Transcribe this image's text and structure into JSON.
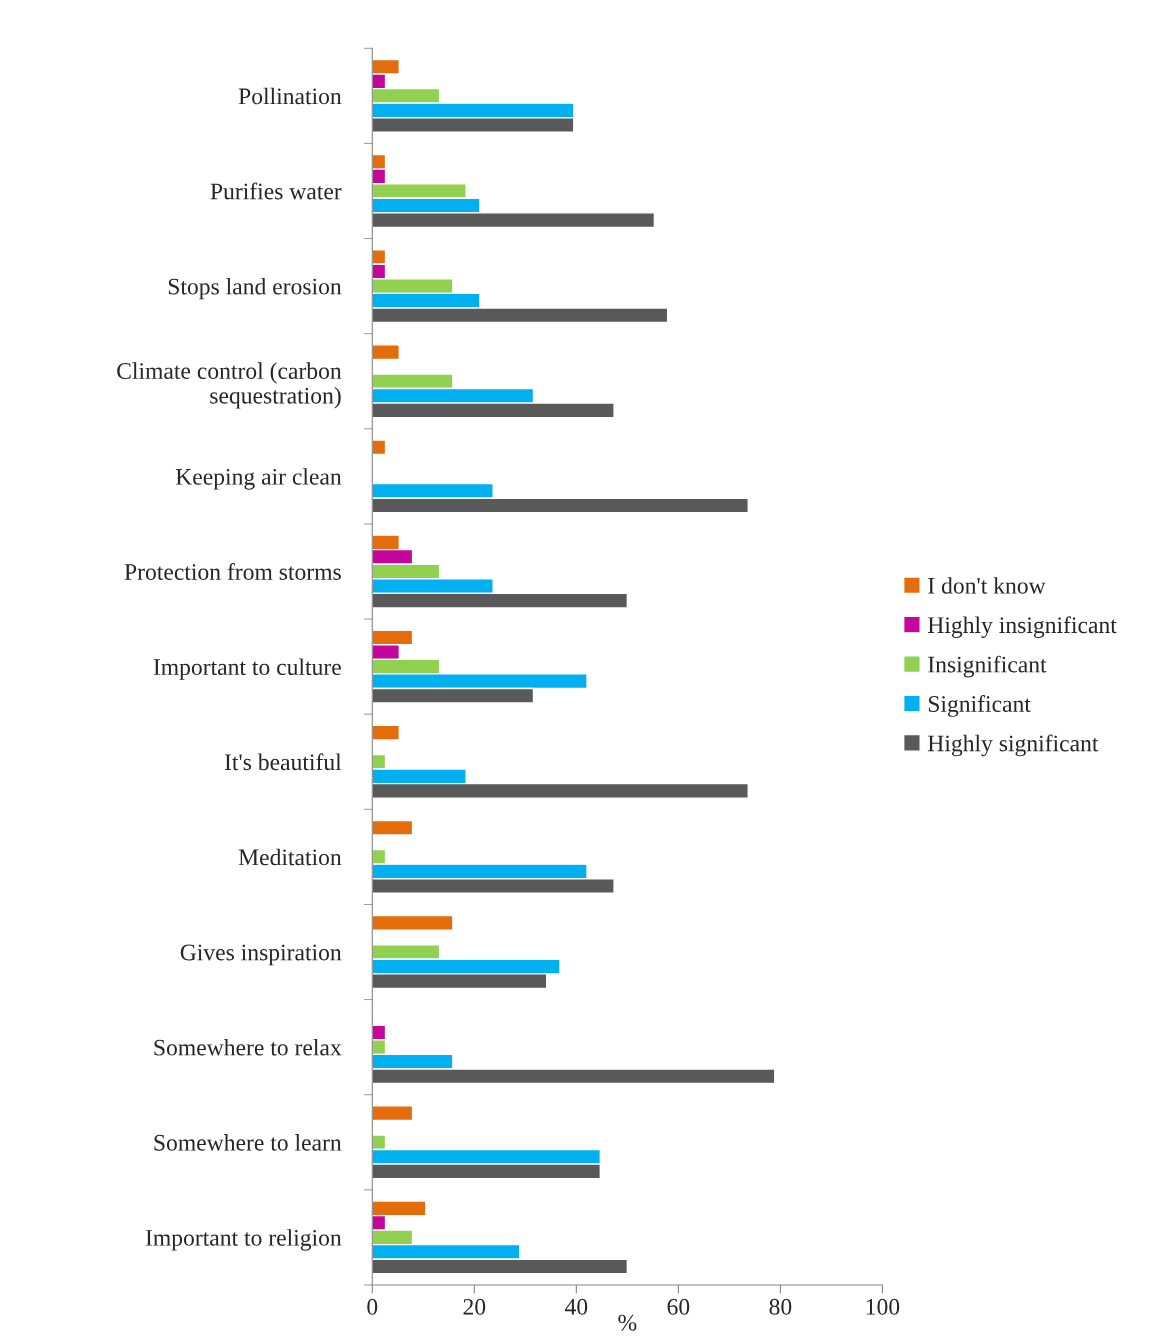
{
  "chart_data": {
    "type": "bar",
    "orientation": "horizontal",
    "categories": [
      "Pollination",
      "Purifies water",
      "Stops land erosion",
      "Climate control (carbon\nsequestration)",
      "Keeping air clean",
      "Protection from storms",
      "Important to culture",
      "It's beautiful",
      "Meditation",
      "Gives inspiration",
      "Somewhere to relax",
      "Somewhere to learn",
      "Important to religion"
    ],
    "series": [
      {
        "name": "I don't know",
        "color": "#e46c0a",
        "values": [
          5.3,
          2.6,
          2.6,
          5.3,
          2.6,
          5.3,
          7.9,
          5.3,
          7.9,
          15.8,
          null,
          7.9,
          10.5
        ]
      },
      {
        "name": "Highly insignificant",
        "color": "#c4069c",
        "values": [
          2.6,
          2.6,
          2.6,
          null,
          null,
          7.9,
          5.3,
          null,
          null,
          null,
          2.6,
          null,
          2.6
        ]
      },
      {
        "name": "Insignificant",
        "color": "#92d050",
        "values": [
          13.2,
          18.4,
          15.8,
          15.8,
          null,
          13.2,
          13.2,
          2.6,
          2.6,
          13.2,
          2.6,
          2.6,
          7.9
        ]
      },
      {
        "name": "Significant",
        "color": "#00b0f0",
        "values": [
          39.5,
          21.1,
          21.1,
          31.6,
          23.7,
          23.7,
          42.1,
          18.4,
          42.1,
          36.8,
          15.8,
          44.7,
          28.9
        ]
      },
      {
        "name": "Highly significant",
        "color": "#595959",
        "values": [
          39.5,
          55.3,
          57.9,
          47.4,
          73.7,
          50,
          31.6,
          73.7,
          47.4,
          34.2,
          78.9,
          44.7,
          50
        ]
      }
    ],
    "xlabel": "%",
    "xlim": [
      0,
      100
    ],
    "xticks": [
      0,
      20,
      40,
      60,
      80,
      100
    ],
    "grid": false,
    "legend": "right"
  }
}
